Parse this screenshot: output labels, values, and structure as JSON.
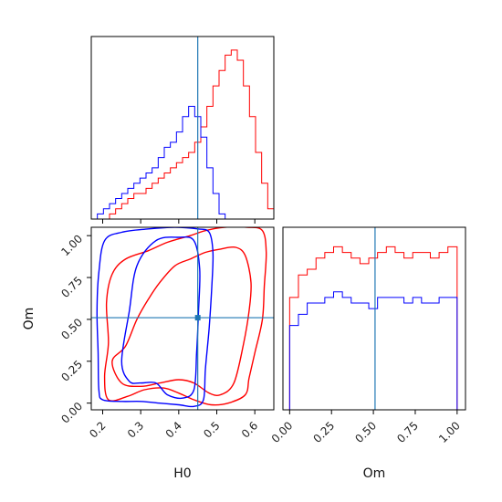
{
  "colors": {
    "series_a": "#ff0000",
    "series_b": "#0000ff",
    "truth": "#1f77b4",
    "frame": "#000000"
  },
  "chart_data": {
    "type": "corner",
    "parameters": [
      "H0",
      "Om"
    ],
    "truth": {
      "H0": 0.45,
      "Om": 0.51
    },
    "ranges": {
      "H0": [
        0.17,
        0.65
      ],
      "Om": [
        -0.04,
        1.05
      ]
    },
    "ticks": {
      "H0": {
        "values": [
          0.2,
          0.3,
          0.4,
          0.5,
          0.6
        ],
        "labels": [
          "0.2",
          "0.3",
          "0.4",
          "0.5",
          "0.6"
        ]
      },
      "Om": {
        "values": [
          0.0,
          0.25,
          0.5,
          0.75,
          1.0
        ],
        "labels": [
          "0.00",
          "0.25",
          "0.50",
          "0.75",
          "1.00"
        ]
      }
    },
    "xlabel_h0": "H0",
    "xlabel_om": "Om",
    "ylabel_om": "Om",
    "hist_h0": {
      "bin_edges": [
        0.17,
        0.186,
        0.202,
        0.218,
        0.234,
        0.25,
        0.266,
        0.282,
        0.298,
        0.314,
        0.33,
        0.346,
        0.362,
        0.378,
        0.394,
        0.41,
        0.426,
        0.442,
        0.458,
        0.474,
        0.49,
        0.506,
        0.522,
        0.538,
        0.554,
        0.57,
        0.586,
        0.602,
        0.618,
        0.634,
        0.65
      ],
      "series": [
        {
          "color": "red",
          "counts": [
            0,
            0,
            0,
            1,
            2,
            3,
            4,
            5,
            5,
            6,
            7,
            8,
            9,
            10,
            11,
            12,
            13,
            15,
            18,
            22,
            26,
            29,
            32,
            33,
            31,
            26,
            20,
            13,
            7,
            2
          ]
        },
        {
          "color": "blue",
          "counts": [
            0,
            1,
            2,
            3,
            4,
            5,
            6,
            7,
            8,
            9,
            10,
            12,
            14,
            15,
            17,
            20,
            22,
            20,
            16,
            10,
            5,
            1,
            0,
            0,
            0,
            0,
            0,
            0,
            0,
            0
          ]
        }
      ]
    },
    "hist_om": {
      "bin_edges": [
        -0.04,
        0.0,
        0.0525,
        0.105,
        0.1575,
        0.21,
        0.2625,
        0.315,
        0.3675,
        0.42,
        0.4725,
        0.525,
        0.5775,
        0.63,
        0.6825,
        0.735,
        0.7875,
        0.84,
        0.8925,
        0.945,
        1.0,
        1.05
      ],
      "series": [
        {
          "color": "red",
          "counts": [
            0,
            20,
            24,
            25,
            27,
            28,
            29,
            28,
            27,
            26,
            27,
            28,
            29,
            28,
            27,
            28,
            28,
            27,
            28,
            29,
            0
          ]
        },
        {
          "color": "blue",
          "counts": [
            0,
            15,
            17,
            19,
            19,
            20,
            21,
            20,
            19,
            19,
            18,
            20,
            20,
            20,
            19,
            20,
            19,
            19,
            20,
            20,
            0
          ]
        }
      ]
    },
    "contours": [
      {
        "color": "red",
        "level": "outer",
        "points": [
          [
            0.205,
            0.16
          ],
          [
            0.215,
            0.36
          ],
          [
            0.21,
            0.6
          ],
          [
            0.225,
            0.77
          ],
          [
            0.26,
            0.86
          ],
          [
            0.32,
            0.91
          ],
          [
            0.37,
            0.96
          ],
          [
            0.43,
            1.0
          ],
          [
            0.47,
            1.03
          ],
          [
            0.52,
            1.05
          ],
          [
            0.58,
            1.05
          ],
          [
            0.62,
            1.03
          ],
          [
            0.63,
            0.9
          ],
          [
            0.625,
            0.7
          ],
          [
            0.62,
            0.5
          ],
          [
            0.6,
            0.3
          ],
          [
            0.585,
            0.15
          ],
          [
            0.575,
            0.05
          ],
          [
            0.53,
            0.0
          ],
          [
            0.485,
            -0.01
          ],
          [
            0.44,
            0.02
          ],
          [
            0.4,
            0.06
          ],
          [
            0.36,
            0.09
          ],
          [
            0.31,
            0.08
          ],
          [
            0.265,
            0.04
          ],
          [
            0.215,
            0.02
          ]
        ]
      },
      {
        "color": "red",
        "level": "inner",
        "points": [
          [
            0.225,
            0.25
          ],
          [
            0.26,
            0.34
          ],
          [
            0.29,
            0.5
          ],
          [
            0.32,
            0.62
          ],
          [
            0.35,
            0.72
          ],
          [
            0.39,
            0.82
          ],
          [
            0.43,
            0.86
          ],
          [
            0.47,
            0.9
          ],
          [
            0.51,
            0.92
          ],
          [
            0.55,
            0.93
          ],
          [
            0.575,
            0.88
          ],
          [
            0.59,
            0.72
          ],
          [
            0.585,
            0.55
          ],
          [
            0.57,
            0.35
          ],
          [
            0.545,
            0.12
          ],
          [
            0.51,
            0.05
          ],
          [
            0.48,
            0.06
          ],
          [
            0.44,
            0.12
          ],
          [
            0.4,
            0.14
          ],
          [
            0.35,
            0.12
          ],
          [
            0.3,
            0.1
          ],
          [
            0.25,
            0.12
          ]
        ]
      },
      {
        "color": "blue",
        "level": "outer",
        "points": [
          [
            0.19,
            0.08
          ],
          [
            0.188,
            0.3
          ],
          [
            0.185,
            0.55
          ],
          [
            0.19,
            0.78
          ],
          [
            0.205,
            0.97
          ],
          [
            0.25,
            1.02
          ],
          [
            0.32,
            1.04
          ],
          [
            0.39,
            1.05
          ],
          [
            0.45,
            1.04
          ],
          [
            0.48,
            1.02
          ],
          [
            0.49,
            0.9
          ],
          [
            0.487,
            0.7
          ],
          [
            0.48,
            0.45
          ],
          [
            0.47,
            0.2
          ],
          [
            0.465,
            0.02
          ],
          [
            0.44,
            -0.02
          ],
          [
            0.4,
            -0.01
          ],
          [
            0.35,
            0.0
          ],
          [
            0.3,
            0.01
          ],
          [
            0.25,
            0.01
          ],
          [
            0.2,
            0.02
          ]
        ]
      },
      {
        "color": "blue",
        "level": "inner",
        "points": [
          [
            0.25,
            0.25
          ],
          [
            0.27,
            0.55
          ],
          [
            0.29,
            0.82
          ],
          [
            0.34,
            0.97
          ],
          [
            0.4,
            0.99
          ],
          [
            0.44,
            0.97
          ],
          [
            0.455,
            0.8
          ],
          [
            0.452,
            0.55
          ],
          [
            0.447,
            0.3
          ],
          [
            0.44,
            0.08
          ],
          [
            0.41,
            0.03
          ],
          [
            0.37,
            0.05
          ],
          [
            0.34,
            0.12
          ],
          [
            0.3,
            0.12
          ],
          [
            0.27,
            0.13
          ]
        ]
      }
    ]
  }
}
